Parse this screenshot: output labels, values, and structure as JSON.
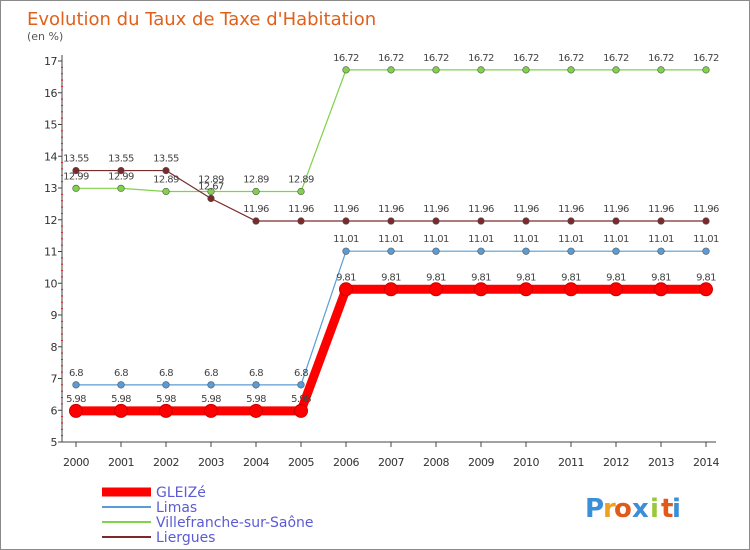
{
  "chart_data": {
    "type": "line",
    "title": "Evolution du Taux de Taxe d'Habitation",
    "ylabel": "(en %)",
    "xlabel": "",
    "ylim": [
      5,
      17
    ],
    "yticks": [
      "5",
      "6",
      "7",
      "8",
      "9",
      "10",
      "11",
      "12",
      "13",
      "14",
      "15",
      "16",
      "17"
    ],
    "categories": [
      "2000",
      "2001",
      "2002",
      "2003",
      "2004",
      "2005",
      "2006",
      "2007",
      "2008",
      "2009",
      "2010",
      "2011",
      "2012",
      "2013",
      "2014"
    ],
    "series": [
      {
        "name": "Villefranche-sur-Saône",
        "color": "#7fd24a",
        "values": [
          12.99,
          12.99,
          12.89,
          12.89,
          12.89,
          12.89,
          16.72,
          16.72,
          16.72,
          16.72,
          16.72,
          16.72,
          16.72,
          16.72,
          16.72
        ],
        "labels": [
          "12.99",
          "12.99",
          "12.89",
          "12.89",
          "12.89",
          "12.89",
          "16.72",
          "16.72",
          "16.72",
          "16.72",
          "16.72",
          "16.72",
          "16.72",
          "16.72",
          "16.72"
        ]
      },
      {
        "name": "Liergues",
        "color": "#7a2a2a",
        "values": [
          13.55,
          13.55,
          13.55,
          12.67,
          11.96,
          11.96,
          11.96,
          11.96,
          11.96,
          11.96,
          11.96,
          11.96,
          11.96,
          11.96,
          11.96
        ],
        "labels": [
          "13.55",
          "13.55",
          "13.55",
          "12.67",
          "11.96",
          "11.96",
          "11.96",
          "11.96",
          "11.96",
          "11.96",
          "11.96",
          "11.96",
          "11.96",
          "11.96",
          "11.96"
        ]
      },
      {
        "name": "Limas",
        "color": "#5a9cd6",
        "values": [
          6.8,
          6.8,
          6.8,
          6.8,
          6.8,
          6.8,
          11.01,
          11.01,
          11.01,
          11.01,
          11.01,
          11.01,
          11.01,
          11.01,
          11.01
        ],
        "labels": [
          "6.8",
          "6.8",
          "6.8",
          "6.8",
          "6.8",
          "6.8",
          "11.01",
          "11.01",
          "11.01",
          "11.01",
          "11.01",
          "11.01",
          "11.01",
          "11.01",
          "11.01"
        ]
      },
      {
        "name": "GLEIZé",
        "color": "#ff0000",
        "values": [
          5.98,
          5.98,
          5.98,
          5.98,
          5.98,
          5.98,
          9.81,
          9.81,
          9.81,
          9.81,
          9.81,
          9.81,
          9.81,
          9.81,
          9.81
        ],
        "labels": [
          "5.98",
          "5.98",
          "5.98",
          "5.98",
          "5.98",
          "5.98",
          "9.81",
          "9.81",
          "9.81",
          "9.81",
          "9.81",
          "9.81",
          "9.81",
          "9.81",
          "9.81"
        ],
        "emphasis": true
      }
    ],
    "legend": [
      "GLEIZé",
      "Limas",
      "Villefranche-sur-Saône",
      "Liergues"
    ],
    "legend_placement": "bottom-left",
    "grid": false
  },
  "branding": {
    "logo_letters": [
      "P",
      "r",
      "o",
      "x",
      "i",
      "t",
      "i"
    ],
    "logo_colors": [
      "#3a8fd6",
      "#f0a020",
      "#e05a1a",
      "#3a8fd6",
      "#9ac83a",
      "#e05a1a",
      "#3a8fd6"
    ]
  }
}
